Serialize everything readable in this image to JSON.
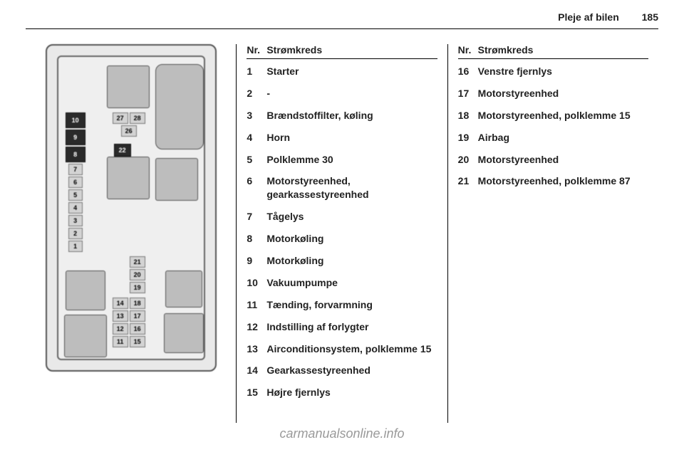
{
  "header": {
    "section": "Pleje af bilen",
    "page": "185"
  },
  "table_header": {
    "nr": "Nr.",
    "circuit": "Strømkreds"
  },
  "col2": [
    {
      "n": "1",
      "d": "Starter"
    },
    {
      "n": "2",
      "d": "-"
    },
    {
      "n": "3",
      "d": "Brændstoffilter, køling"
    },
    {
      "n": "4",
      "d": "Horn"
    },
    {
      "n": "5",
      "d": "Polklemme 30"
    },
    {
      "n": "6",
      "d": "Motorstyreenhed, gearkassestyreenhed"
    },
    {
      "n": "7",
      "d": "Tågelys"
    },
    {
      "n": "8",
      "d": "Motorkøling"
    },
    {
      "n": "9",
      "d": "Motorkøling"
    },
    {
      "n": "10",
      "d": "Vakuumpumpe"
    },
    {
      "n": "11",
      "d": "Tænding, forvarmning"
    },
    {
      "n": "12",
      "d": "Indstilling af forlygter"
    },
    {
      "n": "13",
      "d": "Airconditionsystem, polklemme 15"
    },
    {
      "n": "14",
      "d": "Gearkassestyreenhed"
    },
    {
      "n": "15",
      "d": "Højre fjernlys"
    }
  ],
  "col3": [
    {
      "n": "16",
      "d": "Venstre fjernlys"
    },
    {
      "n": "17",
      "d": "Motorstyreenhed"
    },
    {
      "n": "18",
      "d": "Motorstyreenhed, polklemme 15"
    },
    {
      "n": "19",
      "d": "Airbag"
    },
    {
      "n": "20",
      "d": "Motorstyreenhed"
    },
    {
      "n": "21",
      "d": "Motorstyreenhed, polklemme 87"
    }
  ],
  "diagram_left_stack": [
    "10",
    "9",
    "8",
    "7",
    "6",
    "5",
    "4",
    "3",
    "2",
    "1"
  ],
  "diagram_top_right": [
    "27",
    "28",
    "26"
  ],
  "diagram_center": [
    "22"
  ],
  "diagram_bottom_a": [
    "21",
    "20",
    "19"
  ],
  "diagram_bottom_left": [
    "14",
    "13",
    "12",
    "11"
  ],
  "diagram_bottom_right": [
    "18",
    "17",
    "16",
    "15"
  ],
  "watermark": "carmanualsonline.info"
}
